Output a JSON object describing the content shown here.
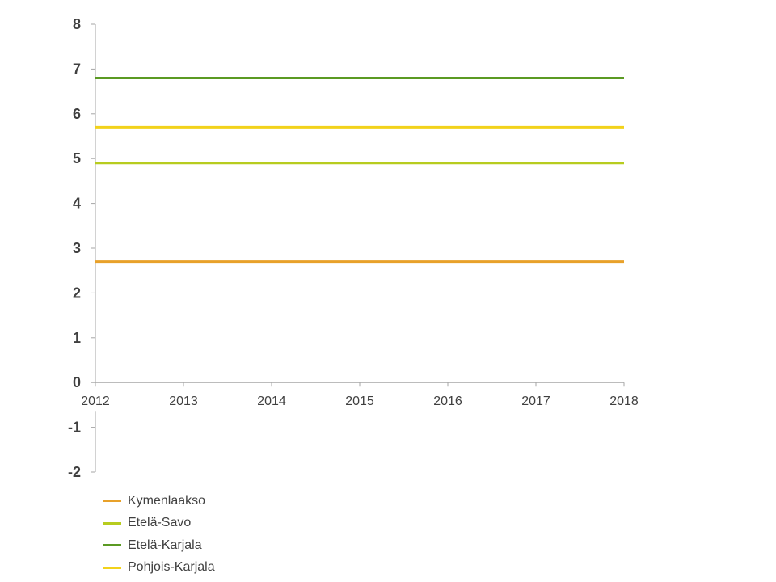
{
  "chart_data": {
    "type": "line",
    "title": "",
    "xlabel": "",
    "ylabel": "",
    "x": [
      2012,
      2013,
      2014,
      2015,
      2016,
      2017,
      2018
    ],
    "xlim": [
      2012,
      2018
    ],
    "ylim": [
      -2,
      8
    ],
    "y_ticks": [
      "8",
      "7",
      "6",
      "5",
      "4",
      "3",
      "2",
      "1",
      "0",
      "-1",
      "-2"
    ],
    "x_ticks": [
      "2012",
      "2013",
      "2014",
      "2015",
      "2016",
      "2017",
      "2018"
    ],
    "grid": false,
    "legend_position": "bottom-left",
    "series": [
      {
        "name": "Kymenlaakso",
        "color": "#e8a12a",
        "values": [
          2.7,
          2.7,
          2.7,
          2.7,
          2.7,
          2.7,
          2.7
        ]
      },
      {
        "name": "Etelä-Savo",
        "color": "#b7cc1f",
        "values": [
          4.9,
          4.9,
          4.9,
          4.9,
          4.9,
          4.9,
          4.9
        ]
      },
      {
        "name": "Etelä-Karjala",
        "color": "#5b9a23",
        "values": [
          6.8,
          6.8,
          6.8,
          6.8,
          6.8,
          6.8,
          6.8
        ]
      },
      {
        "name": "Pohjois-Karjala",
        "color": "#f2d21b",
        "values": [
          5.7,
          5.7,
          5.7,
          5.7,
          5.7,
          5.7,
          5.7
        ]
      }
    ]
  }
}
